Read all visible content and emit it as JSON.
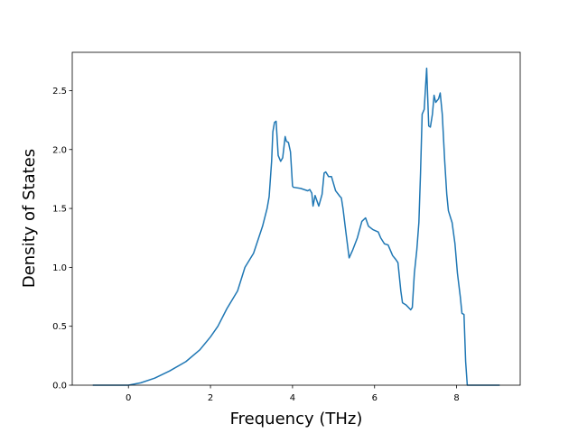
{
  "chart_data": {
    "type": "line",
    "x_label": "Frequency (THz)",
    "y_label": "Density of States",
    "xlim": [
      -1.37,
      9.55
    ],
    "ylim": [
      0,
      2.825
    ],
    "xticks": [
      0,
      2,
      4,
      6,
      8
    ],
    "yticks": [
      {
        "value": 0,
        "label": "0.0"
      },
      {
        "value": 0.5,
        "label": "0.5"
      },
      {
        "value": 1,
        "label": "1.0"
      },
      {
        "value": 1.5,
        "label": "1.5"
      },
      {
        "value": 2,
        "label": "2.0"
      },
      {
        "value": 2.5,
        "label": "2.5"
      }
    ],
    "series": [
      {
        "color": "#1f77b4",
        "x": [
          -0.87,
          0,
          0.3,
          0.64,
          1,
          1.4,
          1.74,
          2,
          2.18,
          2.4,
          2.66,
          2.84,
          3.05,
          3.27,
          3.38,
          3.43,
          3.49,
          3.52,
          3.56,
          3.6,
          3.65,
          3.71,
          3.76,
          3.82,
          3.85,
          3.9,
          3.95,
          4.0,
          4.02,
          4.2,
          4.37,
          4.42,
          4.47,
          4.5,
          4.55,
          4.64,
          4.72,
          4.77,
          4.81,
          4.88,
          4.95,
          5.05,
          5.16,
          5.19,
          5.23,
          5.3,
          5.38,
          5.47,
          5.58,
          5.69,
          5.78,
          5.85,
          5.96,
          6.09,
          6.15,
          6.24,
          6.33,
          6.44,
          6.51,
          6.57,
          6.64,
          6.68,
          6.77,
          6.88,
          6.92,
          6.97,
          7.03,
          7.08,
          7.12,
          7.16,
          7.21,
          7.27,
          7.32,
          7.36,
          7.41,
          7.45,
          7.49,
          7.56,
          7.6,
          7.65,
          7.71,
          7.76,
          7.8,
          7.89,
          7.96,
          8.02,
          8.09,
          8.13,
          8.18,
          8.22,
          8.26,
          9.05
        ],
        "values": [
          0,
          0,
          0.02,
          0.06,
          0.12,
          0.2,
          0.3,
          0.41,
          0.5,
          0.65,
          0.8,
          1.0,
          1.12,
          1.35,
          1.5,
          1.6,
          1.9,
          2.15,
          2.23,
          2.24,
          1.95,
          1.9,
          1.93,
          2.11,
          2.07,
          2.06,
          1.98,
          1.69,
          1.68,
          1.67,
          1.65,
          1.66,
          1.63,
          1.52,
          1.61,
          1.52,
          1.62,
          1.8,
          1.81,
          1.77,
          1.77,
          1.65,
          1.6,
          1.59,
          1.5,
          1.3,
          1.08,
          1.15,
          1.25,
          1.39,
          1.42,
          1.35,
          1.32,
          1.3,
          1.25,
          1.2,
          1.19,
          1.1,
          1.07,
          1.04,
          0.8,
          0.7,
          0.68,
          0.64,
          0.66,
          0.95,
          1.15,
          1.38,
          1.8,
          2.3,
          2.34,
          2.69,
          2.2,
          2.19,
          2.3,
          2.46,
          2.4,
          2.43,
          2.48,
          2.3,
          1.9,
          1.62,
          1.48,
          1.38,
          1.2,
          0.95,
          0.75,
          0.61,
          0.6,
          0.2,
          0,
          0
        ]
      }
    ]
  }
}
